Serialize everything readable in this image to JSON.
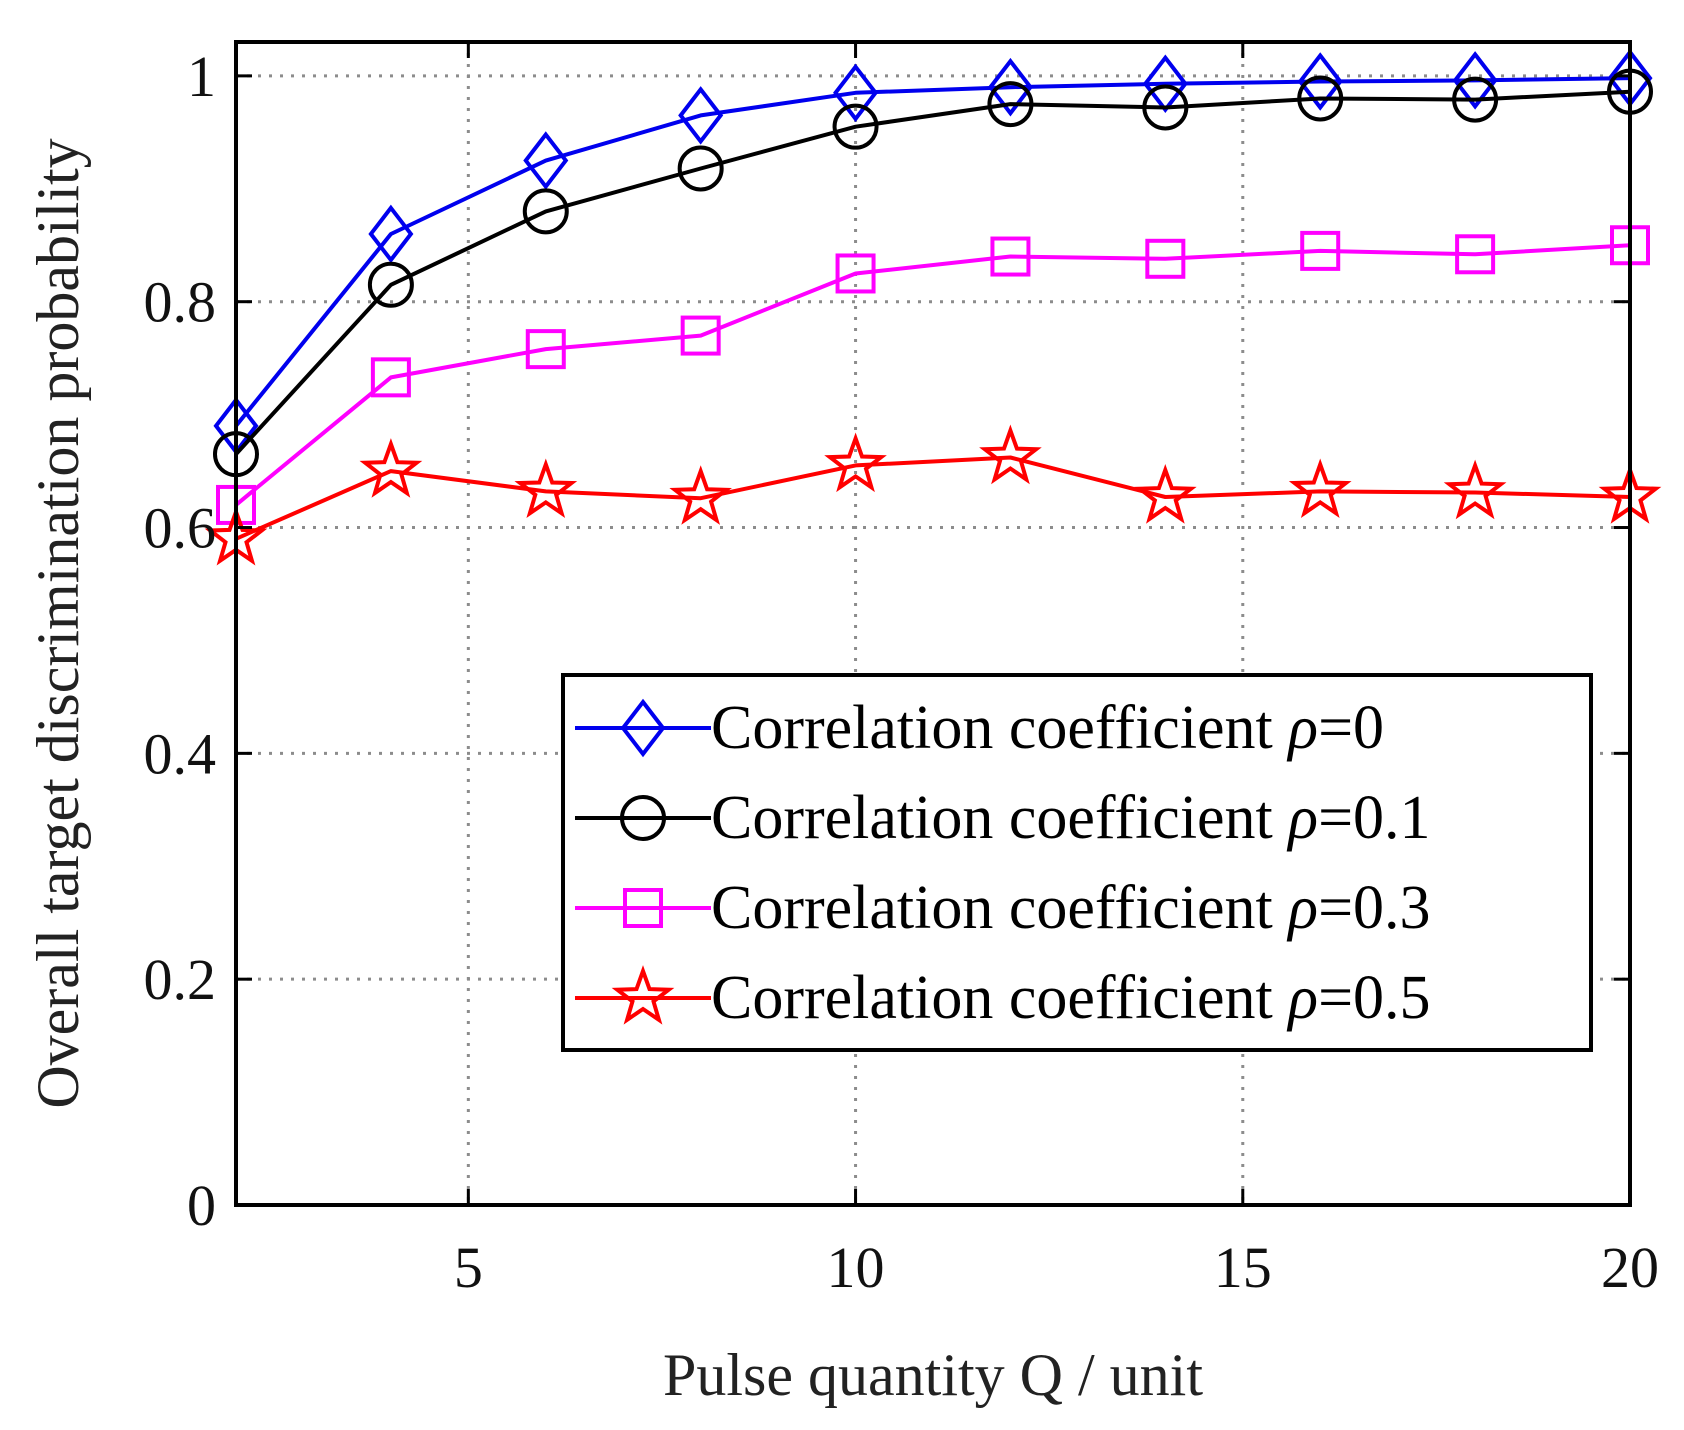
{
  "chart_data": {
    "type": "line",
    "title": "",
    "xlabel": "Pulse quantity Q / unit",
    "ylabel": "Overall target discrimination probability",
    "xlim": [
      2,
      20
    ],
    "ylim": [
      0,
      1.03
    ],
    "xticks": [
      5,
      10,
      15,
      20
    ],
    "xtick_labels": [
      "5",
      "10",
      "15",
      "20"
    ],
    "yticks": [
      0,
      0.2,
      0.4,
      0.6,
      0.8,
      1
    ],
    "ytick_labels": [
      "0",
      "0.2",
      "0.4",
      "0.6",
      "0.8",
      "1"
    ],
    "grid": true,
    "legend_position": "center-right",
    "x": [
      2,
      4,
      6,
      8,
      10,
      12,
      14,
      16,
      18,
      20
    ],
    "series": [
      {
        "name": "Correlation coefficient ρ=0",
        "legend_prefix": "Correlation coefficient ",
        "legend_symbol": "ρ",
        "legend_value": "=0",
        "color": "#0000ee",
        "marker": "diamond",
        "values": [
          0.69,
          0.86,
          0.925,
          0.965,
          0.985,
          0.99,
          0.993,
          0.995,
          0.996,
          0.998
        ]
      },
      {
        "name": "Correlation coefficient ρ=0.1",
        "legend_prefix": "Correlation coefficient ",
        "legend_symbol": "ρ",
        "legend_value": "=0.1",
        "color": "#000000",
        "marker": "circle",
        "values": [
          0.665,
          0.815,
          0.88,
          0.918,
          0.955,
          0.975,
          0.972,
          0.98,
          0.979,
          0.986
        ]
      },
      {
        "name": "Correlation coefficient ρ=0.3",
        "legend_prefix": "Correlation coefficient ",
        "legend_symbol": "ρ",
        "legend_value": "=0.3",
        "color": "#ff00ff",
        "marker": "square",
        "values": [
          0.62,
          0.733,
          0.758,
          0.77,
          0.825,
          0.84,
          0.838,
          0.845,
          0.842,
          0.85
        ]
      },
      {
        "name": "Correlation coefficient ρ=0.5",
        "legend_prefix": "Correlation coefficient ",
        "legend_symbol": "ρ",
        "legend_value": "=0.5",
        "color": "#ff0000",
        "marker": "star",
        "values": [
          0.59,
          0.65,
          0.632,
          0.626,
          0.655,
          0.662,
          0.627,
          0.632,
          0.631,
          0.627
        ]
      }
    ]
  }
}
